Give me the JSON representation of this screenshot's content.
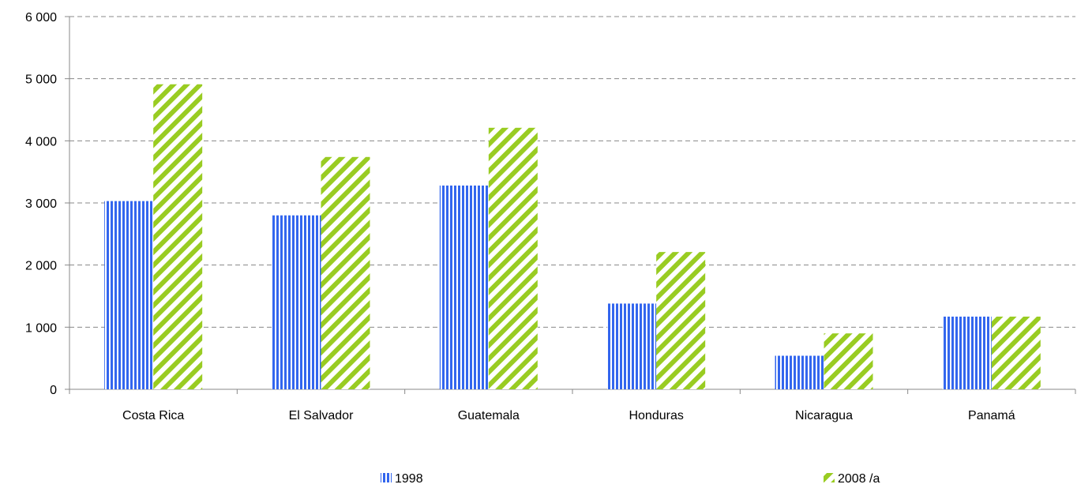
{
  "chart_data": {
    "type": "bar",
    "categories": [
      "Costa Rica",
      "El Salvador",
      "Guatemala",
      "Honduras",
      "Nicaragua",
      "Panamá"
    ],
    "series": [
      {
        "name": "1998",
        "values": [
          3030,
          2800,
          3280,
          1380,
          540,
          1170
        ],
        "color": "#3366ee",
        "pattern": "vertical-stripes"
      },
      {
        "name": "2008 /a",
        "values": [
          4910,
          3740,
          4210,
          2210,
          900,
          1170
        ],
        "color": "#99cc22",
        "pattern": "diagonal-stripes"
      }
    ],
    "ylim": [
      0,
      6000
    ],
    "yticks": [
      0,
      1000,
      2000,
      3000,
      4000,
      5000,
      6000
    ],
    "ytick_labels": [
      "0",
      "1 000",
      "2 000",
      "3 000",
      "4 000",
      "5 000",
      "6 000"
    ],
    "title": "",
    "xlabel": "",
    "ylabel": "",
    "grid": "horizontal-dashed",
    "legend_position": "bottom"
  }
}
